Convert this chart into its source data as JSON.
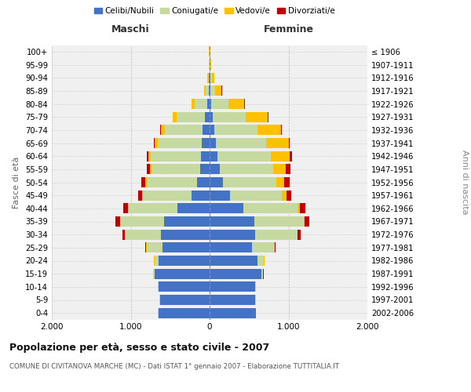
{
  "age_groups": [
    "0-4",
    "5-9",
    "10-14",
    "15-19",
    "20-24",
    "25-29",
    "30-34",
    "35-39",
    "40-44",
    "45-49",
    "50-54",
    "55-59",
    "60-64",
    "65-69",
    "70-74",
    "75-79",
    "80-84",
    "85-89",
    "90-94",
    "95-99",
    "100+"
  ],
  "birth_years": [
    "2002-2006",
    "1997-2001",
    "1992-1996",
    "1987-1991",
    "1982-1986",
    "1977-1981",
    "1972-1976",
    "1967-1971",
    "1962-1966",
    "1957-1961",
    "1952-1956",
    "1947-1951",
    "1942-1946",
    "1937-1941",
    "1932-1936",
    "1927-1931",
    "1922-1926",
    "1917-1921",
    "1912-1916",
    "1907-1911",
    "≤ 1906"
  ],
  "maschi_celibi": [
    650,
    630,
    650,
    700,
    650,
    600,
    620,
    580,
    410,
    230,
    160,
    120,
    110,
    100,
    85,
    55,
    25,
    10,
    5,
    3,
    2
  ],
  "maschi_coniugati": [
    2,
    2,
    5,
    15,
    50,
    200,
    450,
    550,
    620,
    620,
    640,
    620,
    640,
    560,
    480,
    360,
    160,
    40,
    15,
    5,
    2
  ],
  "maschi_vedovi": [
    0,
    0,
    0,
    1,
    2,
    2,
    3,
    5,
    8,
    10,
    15,
    20,
    30,
    40,
    50,
    50,
    45,
    20,
    8,
    3,
    1
  ],
  "maschi_divorziati": [
    0,
    0,
    0,
    1,
    3,
    10,
    30,
    55,
    60,
    50,
    50,
    35,
    15,
    10,
    8,
    5,
    3,
    2,
    0,
    0,
    0
  ],
  "femmine_celibi": [
    590,
    580,
    580,
    660,
    610,
    540,
    580,
    570,
    430,
    260,
    170,
    130,
    100,
    80,
    60,
    40,
    20,
    10,
    5,
    3,
    2
  ],
  "femmine_coniugati": [
    2,
    3,
    5,
    20,
    80,
    280,
    530,
    620,
    680,
    660,
    680,
    680,
    680,
    640,
    550,
    420,
    220,
    60,
    20,
    5,
    2
  ],
  "femmine_vedovi": [
    0,
    0,
    0,
    1,
    3,
    5,
    8,
    15,
    35,
    60,
    100,
    160,
    230,
    280,
    300,
    280,
    200,
    80,
    30,
    8,
    2
  ],
  "femmine_divorziati": [
    0,
    0,
    0,
    2,
    5,
    15,
    35,
    60,
    70,
    55,
    60,
    55,
    30,
    15,
    10,
    8,
    5,
    5,
    2,
    0,
    0
  ],
  "colors": {
    "celibi": "#4472c4",
    "coniugati": "#c5d9a0",
    "vedovi": "#ffc000",
    "divorziati": "#c00000"
  },
  "xlim": 2000,
  "title": "Popolazione per età, sesso e stato civile - 2007",
  "subtitle": "COMUNE DI CIVITANOVA MARCHE (MC) - Dati ISTAT 1° gennaio 2007 - Elaborazione TUTTITALIA.IT",
  "xlabel_left": "Maschi",
  "xlabel_right": "Femmine",
  "ylabel_left": "Fasce di età",
  "ylabel_right": "Anni di nascita",
  "bg_color": "#ffffff",
  "plot_bg_color": "#f0f0f0"
}
